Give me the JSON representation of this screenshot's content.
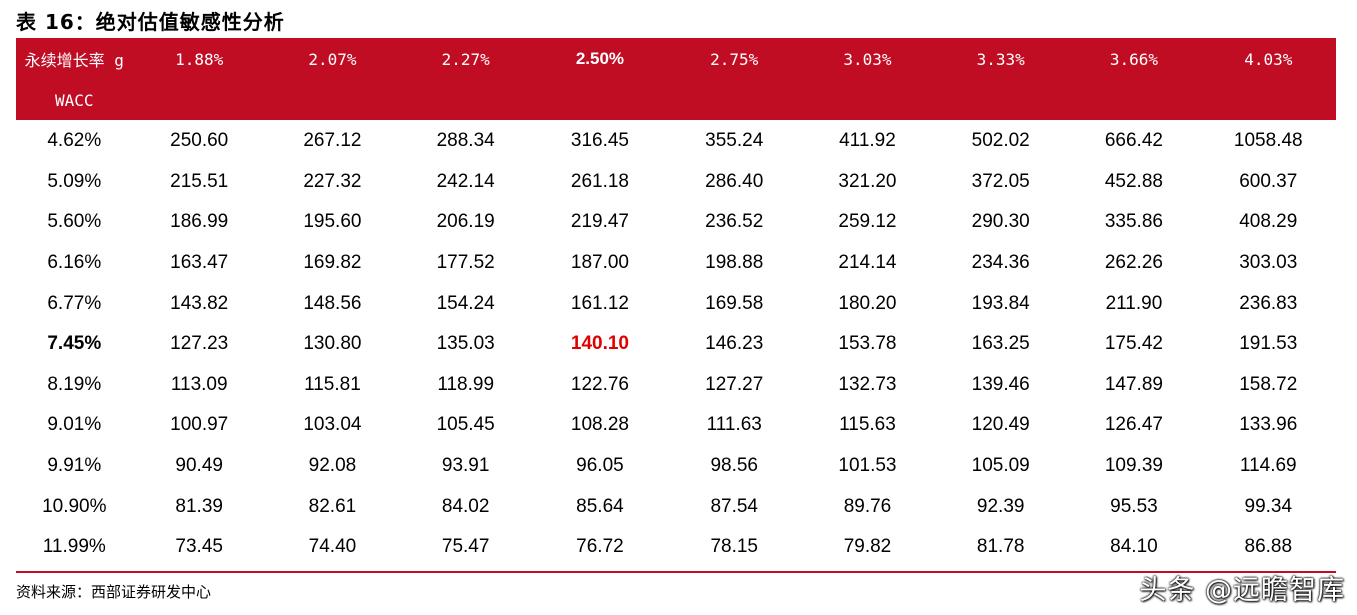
{
  "title": "表 16：绝对估值敏感性分析",
  "header": {
    "g_label": "永续增长率 g",
    "wacc_label": "WACC",
    "growth_rates": [
      "1.88%",
      "2.07%",
      "2.27%",
      "2.50%",
      "2.75%",
      "3.03%",
      "3.33%",
      "3.66%",
      "4.03%"
    ],
    "highlight_col": 3
  },
  "rows": [
    {
      "wacc": "4.62%",
      "values": [
        "250.60",
        "267.12",
        "288.34",
        "316.45",
        "355.24",
        "411.92",
        "502.02",
        "666.42",
        "1058.48"
      ]
    },
    {
      "wacc": "5.09%",
      "values": [
        "215.51",
        "227.32",
        "242.14",
        "261.18",
        "286.40",
        "321.20",
        "372.05",
        "452.88",
        "600.37"
      ]
    },
    {
      "wacc": "5.60%",
      "values": [
        "186.99",
        "195.60",
        "206.19",
        "219.47",
        "236.52",
        "259.12",
        "290.30",
        "335.86",
        "408.29"
      ]
    },
    {
      "wacc": "6.16%",
      "values": [
        "163.47",
        "169.82",
        "177.52",
        "187.00",
        "198.88",
        "214.14",
        "234.36",
        "262.26",
        "303.03"
      ]
    },
    {
      "wacc": "6.77%",
      "values": [
        "143.82",
        "148.56",
        "154.24",
        "161.12",
        "169.58",
        "180.20",
        "193.84",
        "211.90",
        "236.83"
      ]
    },
    {
      "wacc": "7.45%",
      "values": [
        "127.23",
        "130.80",
        "135.03",
        "140.10",
        "146.23",
        "153.78",
        "163.25",
        "175.42",
        "191.53"
      ]
    },
    {
      "wacc": "8.19%",
      "values": [
        "113.09",
        "115.81",
        "118.99",
        "122.76",
        "127.27",
        "132.73",
        "139.46",
        "147.89",
        "158.72"
      ]
    },
    {
      "wacc": "9.01%",
      "values": [
        "100.97",
        "103.04",
        "105.45",
        "108.28",
        "111.63",
        "115.63",
        "120.49",
        "126.47",
        "133.96"
      ]
    },
    {
      "wacc": "9.91%",
      "values": [
        "90.49",
        "92.08",
        "93.91",
        "96.05",
        "98.56",
        "101.53",
        "105.09",
        "109.39",
        "114.69"
      ]
    },
    {
      "wacc": "10.90%",
      "values": [
        "81.39",
        "82.61",
        "84.02",
        "85.64",
        "87.54",
        "89.76",
        "92.39",
        "95.53",
        "99.34"
      ]
    },
    {
      "wacc": "11.99%",
      "values": [
        "73.45",
        "74.40",
        "75.47",
        "76.72",
        "78.15",
        "79.82",
        "81.78",
        "84.10",
        "86.88"
      ]
    }
  ],
  "highlight_row": 5,
  "source": "资料来源：西部证券研发中心",
  "watermark": "头条 @远瞻智库",
  "colors": {
    "header_bg": "#c00d24",
    "highlight_value": "#e00000"
  }
}
